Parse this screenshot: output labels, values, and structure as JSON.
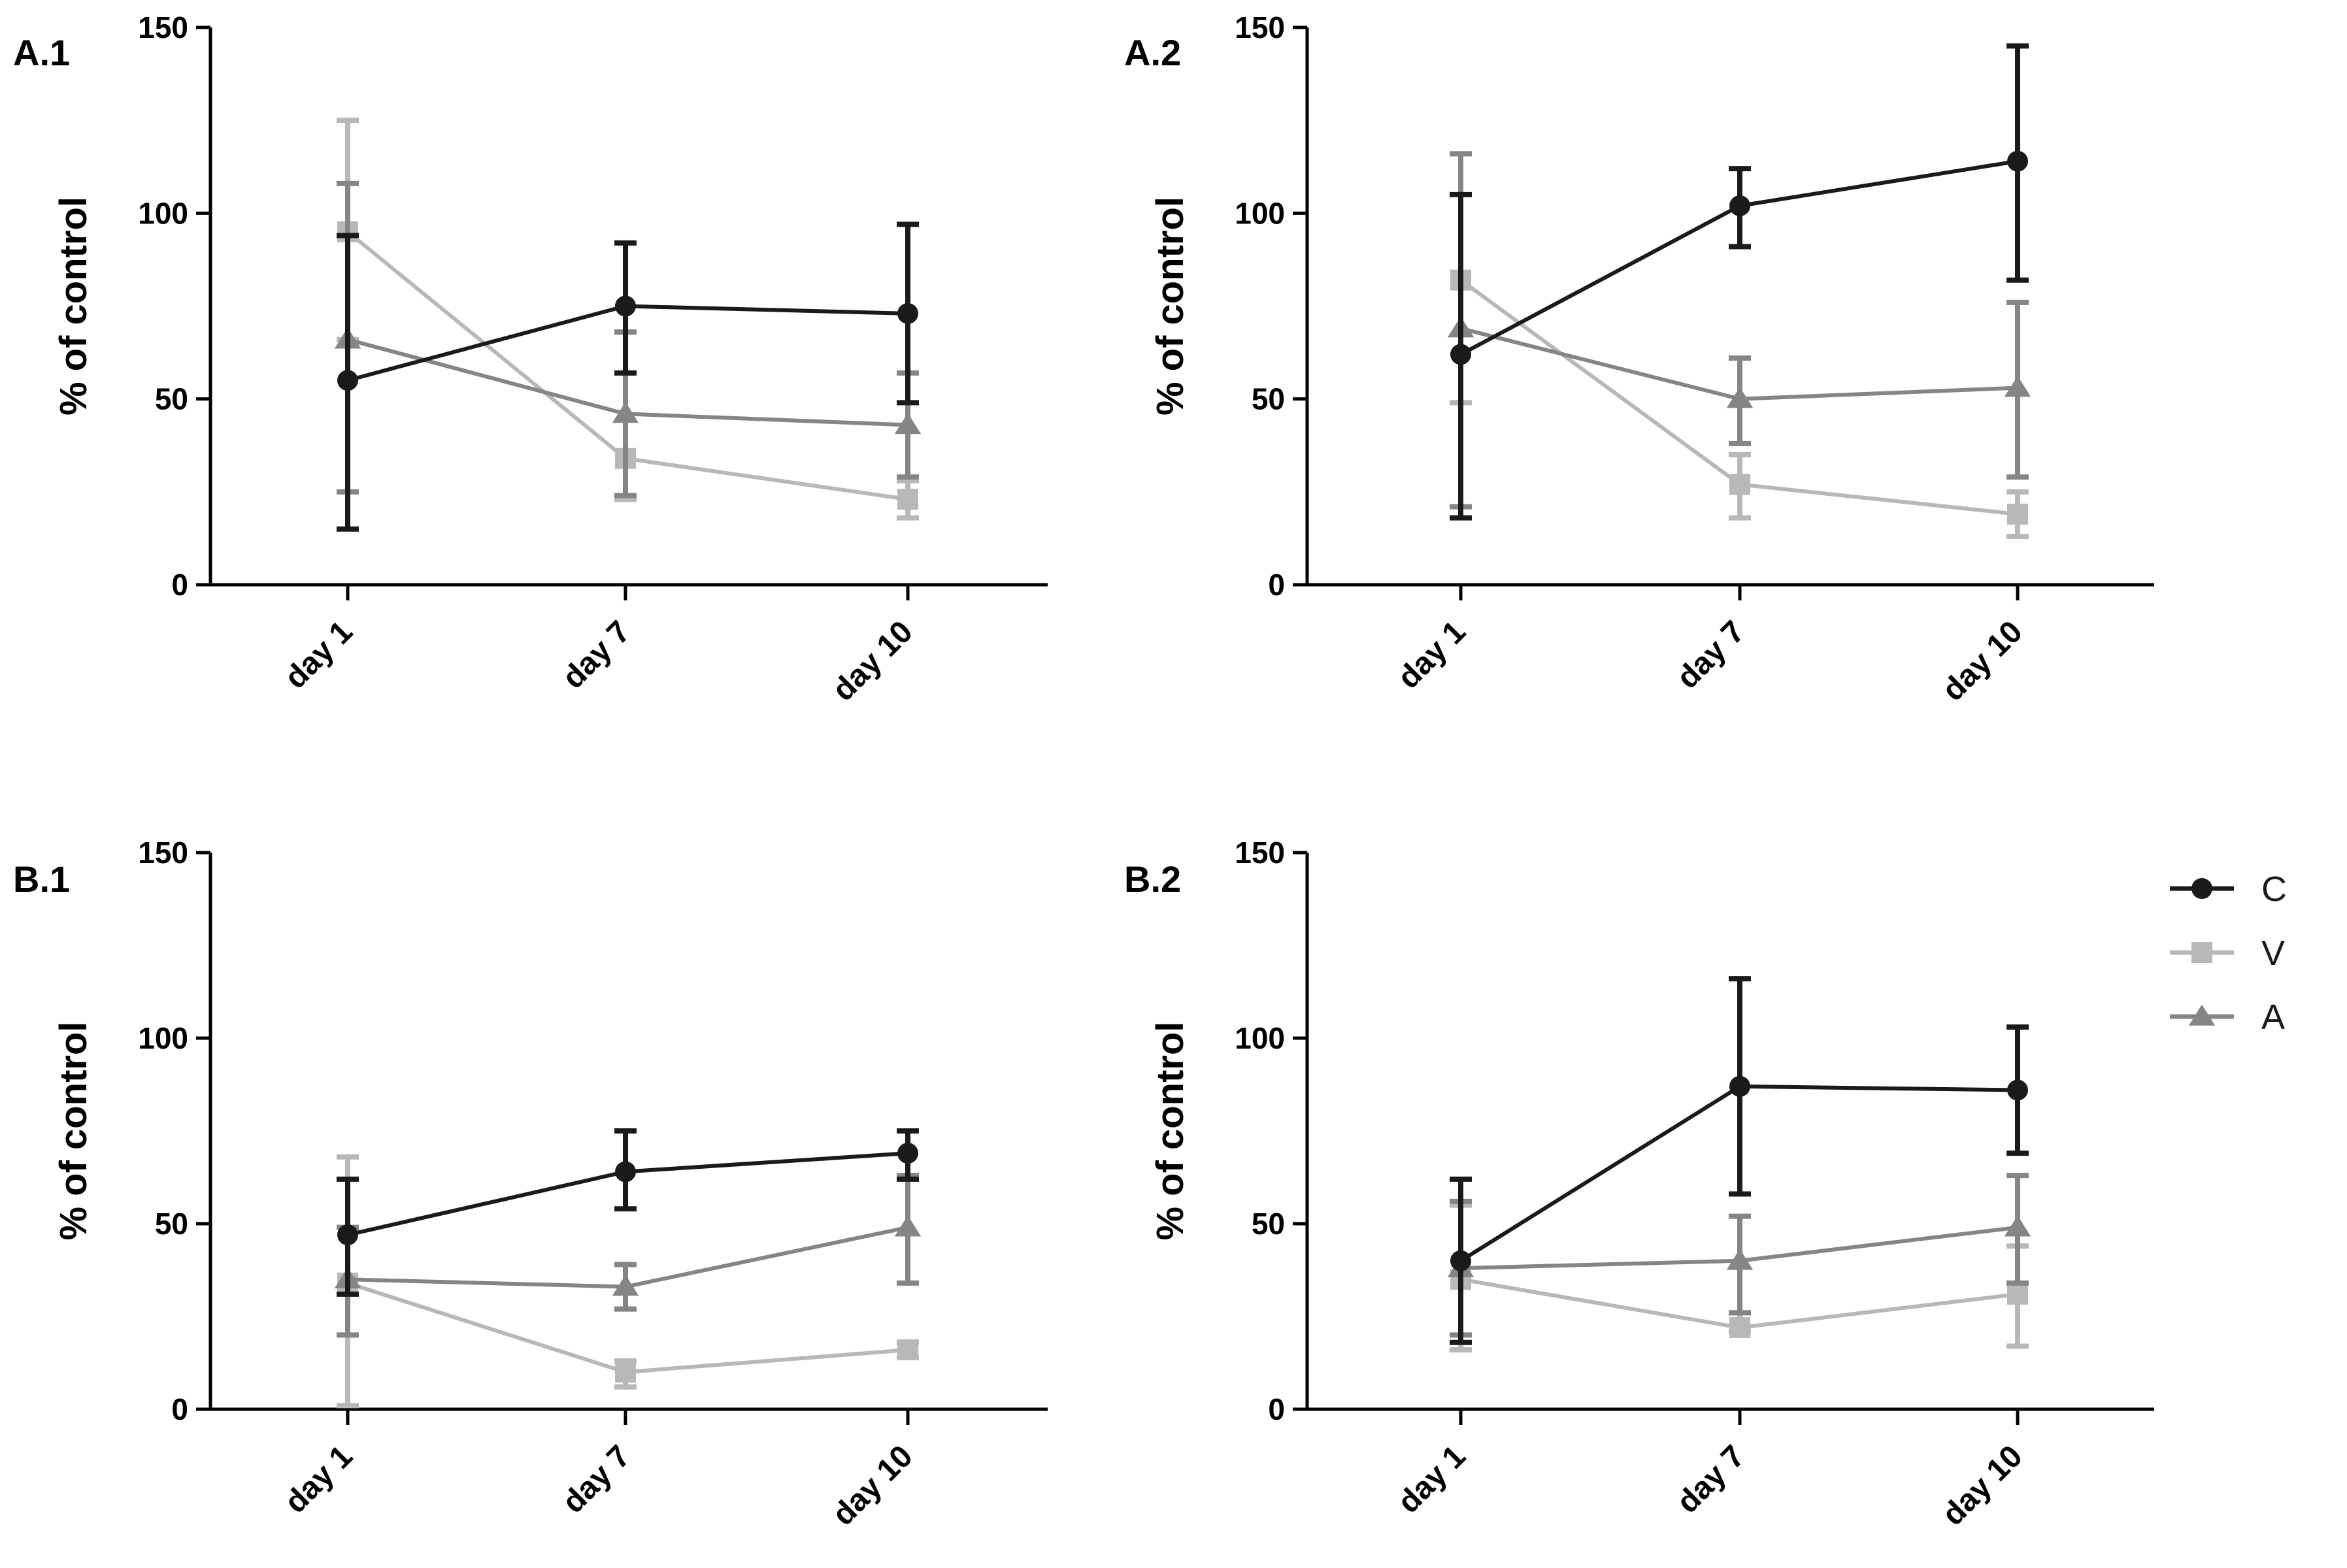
{
  "colors": {
    "C": "#1a1a1a",
    "V": "#b8b8b8",
    "A": "#858585",
    "axis": "#000000"
  },
  "legend": {
    "items": [
      {
        "key": "C",
        "label": "C",
        "marker": "circle"
      },
      {
        "key": "V",
        "label": "V",
        "marker": "square"
      },
      {
        "key": "A",
        "label": "A",
        "marker": "triangle"
      }
    ]
  },
  "chart_data": [
    {
      "type": "line",
      "title": "A.1",
      "ylabel": "% of control",
      "xlabel": "",
      "categories": [
        "day 1",
        "day 7",
        "day 10"
      ],
      "ylim": [
        0,
        150
      ],
      "yticks": [
        0,
        50,
        100,
        150
      ],
      "series": [
        {
          "name": "C",
          "values": [
            55,
            75,
            73
          ],
          "lower": [
            15,
            57,
            49
          ],
          "upper": [
            94,
            92,
            97
          ]
        },
        {
          "name": "V",
          "values": [
            95,
            34,
            23
          ],
          "lower": [
            66,
            23,
            18
          ],
          "upper": [
            125,
            68,
            28
          ]
        },
        {
          "name": "A",
          "values": [
            66,
            46,
            43
          ],
          "lower": [
            25,
            24,
            29
          ],
          "upper": [
            108,
            68,
            57
          ]
        }
      ]
    },
    {
      "type": "line",
      "title": "A.2",
      "ylabel": "% of control",
      "xlabel": "",
      "categories": [
        "day 1",
        "day 7",
        "day 10"
      ],
      "ylim": [
        0,
        150
      ],
      "yticks": [
        0,
        50,
        100,
        150
      ],
      "series": [
        {
          "name": "C",
          "values": [
            62,
            102,
            114
          ],
          "lower": [
            18,
            91,
            82
          ],
          "upper": [
            105,
            112,
            145
          ]
        },
        {
          "name": "V",
          "values": [
            82,
            27,
            19
          ],
          "lower": [
            49,
            18,
            13
          ],
          "upper": [
            116,
            35,
            25
          ]
        },
        {
          "name": "A",
          "values": [
            69,
            50,
            53
          ],
          "lower": [
            21,
            38,
            29
          ],
          "upper": [
            116,
            61,
            76
          ]
        }
      ]
    },
    {
      "type": "line",
      "title": "B.1",
      "ylabel": "% of control",
      "xlabel": "",
      "categories": [
        "day 1",
        "day 7",
        "day 10"
      ],
      "ylim": [
        0,
        150
      ],
      "yticks": [
        0,
        50,
        100,
        150
      ],
      "series": [
        {
          "name": "C",
          "values": [
            47,
            64,
            69
          ],
          "lower": [
            31,
            54,
            62
          ],
          "upper": [
            62,
            75,
            75
          ]
        },
        {
          "name": "V",
          "values": [
            34,
            10,
            16
          ],
          "lower": [
            1,
            6,
            14
          ],
          "upper": [
            68,
            13,
            18
          ]
        },
        {
          "name": "A",
          "values": [
            35,
            33,
            49
          ],
          "lower": [
            20,
            27,
            34
          ],
          "upper": [
            49,
            39,
            63
          ]
        }
      ]
    },
    {
      "type": "line",
      "title": "B.2",
      "ylabel": "% of control",
      "xlabel": "",
      "categories": [
        "day 1",
        "day 7",
        "day 10"
      ],
      "ylim": [
        0,
        150
      ],
      "yticks": [
        0,
        50,
        100,
        150
      ],
      "series": [
        {
          "name": "C",
          "values": [
            40,
            87,
            86
          ],
          "lower": [
            18,
            58,
            69
          ],
          "upper": [
            62,
            116,
            103
          ]
        },
        {
          "name": "V",
          "values": [
            35,
            22,
            31
          ],
          "lower": [
            16,
            21,
            17
          ],
          "upper": [
            55,
            26,
            44
          ]
        },
        {
          "name": "A",
          "values": [
            38,
            40,
            49
          ],
          "lower": [
            20,
            26,
            34
          ],
          "upper": [
            56,
            52,
            63
          ]
        }
      ]
    }
  ]
}
